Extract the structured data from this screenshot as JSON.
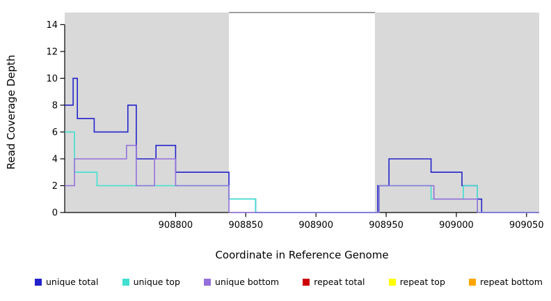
{
  "chart_data": {
    "type": "line",
    "subtype": "step",
    "title": "",
    "xlabel": "Coordinate in Reference Genome",
    "ylabel": "Read Coverage Depth",
    "xlim": [
      908721,
      909059
    ],
    "ylim": [
      0,
      14.9
    ],
    "x_ticks": [
      908800,
      908850,
      908900,
      908950,
      909000,
      909050
    ],
    "y_ticks": [
      0,
      2,
      4,
      6,
      8,
      10,
      12,
      14
    ],
    "grid": false,
    "shade_color": "#d9d9d9",
    "shaded_regions": [
      {
        "name": "repeat-region-left",
        "x0": 908721,
        "x1": 908838
      },
      {
        "name": "repeat-region-right",
        "x0": 908942,
        "x1": 909059
      }
    ],
    "top_border_segment": {
      "x0": 908838,
      "x1": 908942,
      "color": "#666666"
    },
    "series": [
      {
        "name": "repeat total",
        "color": "#cc0000",
        "points": [
          [
            908721,
            0
          ],
          [
            908838,
            null
          ],
          [
            908942,
            0
          ],
          [
            909015,
            null
          ]
        ]
      },
      {
        "name": "repeat top",
        "color": "#ffff00",
        "points": [
          [
            908721,
            0
          ],
          [
            908838,
            null
          ],
          [
            908942,
            0
          ],
          [
            909015,
            null
          ]
        ]
      },
      {
        "name": "repeat bottom",
        "color": "#ffa500",
        "points": [
          [
            908721,
            0
          ],
          [
            908838,
            null
          ],
          [
            908942,
            0
          ],
          [
            909015,
            null
          ]
        ]
      },
      {
        "name": "unique total",
        "color": "#2222cc",
        "points": [
          [
            908721,
            8
          ],
          [
            908727,
            10
          ],
          [
            908730,
            7
          ],
          [
            908742,
            6
          ],
          [
            908766,
            8
          ],
          [
            908772,
            4
          ],
          [
            908786,
            5
          ],
          [
            908800,
            3
          ],
          [
            908838,
            1
          ],
          [
            908857,
            0
          ],
          [
            908944,
            2
          ],
          [
            908952,
            4
          ],
          [
            908982,
            3
          ],
          [
            909004,
            2
          ],
          [
            909015,
            1
          ],
          [
            909018,
            0
          ]
        ]
      },
      {
        "name": "unique top",
        "color": "#40e0d0",
        "points": [
          [
            908721,
            6
          ],
          [
            908728,
            3
          ],
          [
            908744,
            2
          ],
          [
            908838,
            1
          ],
          [
            908857,
            0
          ],
          [
            908945,
            2
          ],
          [
            908982,
            1
          ],
          [
            909005,
            2
          ],
          [
            909015,
            0
          ]
        ]
      },
      {
        "name": "unique bottom",
        "color": "#9370db",
        "points": [
          [
            908721,
            2
          ],
          [
            908728,
            4
          ],
          [
            908765,
            5
          ],
          [
            908772,
            2
          ],
          [
            908785,
            4
          ],
          [
            908800,
            2
          ],
          [
            908838,
            0
          ],
          [
            908945,
            2
          ],
          [
            908984,
            1
          ],
          [
            909015,
            0
          ]
        ]
      }
    ],
    "legend": {
      "position": "bottom",
      "entries": [
        {
          "label": "unique total",
          "color": "#2222cc"
        },
        {
          "label": "unique top",
          "color": "#40e0d0"
        },
        {
          "label": "unique bottom",
          "color": "#9370db"
        },
        {
          "label": "repeat total",
          "color": "#cc0000"
        },
        {
          "label": "repeat top",
          "color": "#ffff00"
        },
        {
          "label": "repeat bottom",
          "color": "#ffa500"
        }
      ]
    }
  }
}
